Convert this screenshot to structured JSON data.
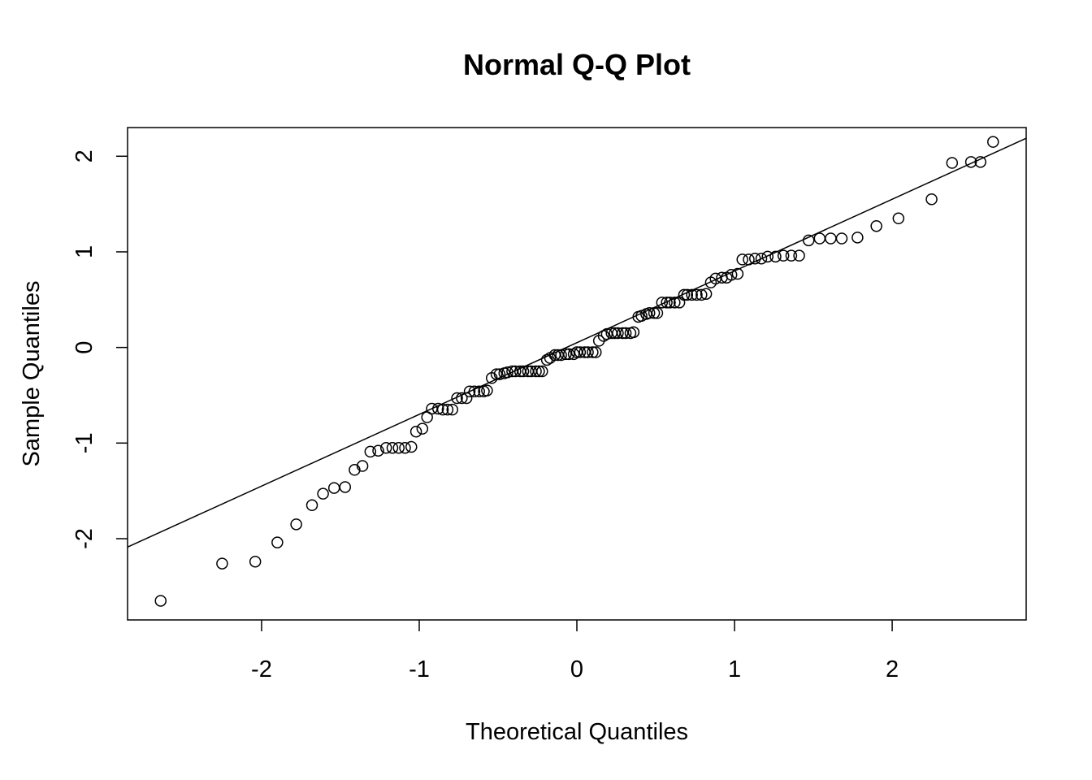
{
  "chart_data": {
    "type": "scatter",
    "title": "Normal Q-Q Plot",
    "xlabel": "Theoretical Quantiles",
    "ylabel": "Sample Quantiles",
    "xlim": [
      -2.85,
      2.85
    ],
    "ylim": [
      -2.85,
      2.3
    ],
    "x_ticks": [
      -2,
      -1,
      0,
      1,
      2
    ],
    "y_ticks": [
      -2,
      -1,
      0,
      1,
      2
    ],
    "x_tick_labels": [
      "-2",
      "-1",
      "0",
      "1",
      "2"
    ],
    "y_tick_labels": [
      "-2",
      "-1",
      "0",
      "1",
      "2"
    ],
    "grid": false,
    "reference_line": {
      "slope": 0.75,
      "intercept": 0.05
    },
    "points": [
      {
        "x": -2.64,
        "y": -2.65
      },
      {
        "x": -2.25,
        "y": -2.26
      },
      {
        "x": -2.04,
        "y": -2.24
      },
      {
        "x": -1.9,
        "y": -2.04
      },
      {
        "x": -1.78,
        "y": -1.85
      },
      {
        "x": -1.68,
        "y": -1.65
      },
      {
        "x": -1.61,
        "y": -1.53
      },
      {
        "x": -1.54,
        "y": -1.47
      },
      {
        "x": -1.47,
        "y": -1.46
      },
      {
        "x": -1.41,
        "y": -1.28
      },
      {
        "x": -1.36,
        "y": -1.24
      },
      {
        "x": -1.31,
        "y": -1.09
      },
      {
        "x": -1.26,
        "y": -1.08
      },
      {
        "x": -1.21,
        "y": -1.05
      },
      {
        "x": -1.17,
        "y": -1.05
      },
      {
        "x": -1.13,
        "y": -1.05
      },
      {
        "x": -1.09,
        "y": -1.05
      },
      {
        "x": -1.05,
        "y": -1.04
      },
      {
        "x": -1.02,
        "y": -0.88
      },
      {
        "x": -0.98,
        "y": -0.85
      },
      {
        "x": -0.95,
        "y": -0.73
      },
      {
        "x": -0.92,
        "y": -0.64
      },
      {
        "x": -0.88,
        "y": -0.64
      },
      {
        "x": -0.85,
        "y": -0.65
      },
      {
        "x": -0.82,
        "y": -0.65
      },
      {
        "x": -0.79,
        "y": -0.65
      },
      {
        "x": -0.76,
        "y": -0.53
      },
      {
        "x": -0.73,
        "y": -0.53
      },
      {
        "x": -0.7,
        "y": -0.53
      },
      {
        "x": -0.68,
        "y": -0.46
      },
      {
        "x": -0.65,
        "y": -0.46
      },
      {
        "x": -0.62,
        "y": -0.46
      },
      {
        "x": -0.59,
        "y": -0.46
      },
      {
        "x": -0.57,
        "y": -0.45
      },
      {
        "x": -0.54,
        "y": -0.32
      },
      {
        "x": -0.51,
        "y": -0.28
      },
      {
        "x": -0.49,
        "y": -0.28
      },
      {
        "x": -0.46,
        "y": -0.27
      },
      {
        "x": -0.44,
        "y": -0.26
      },
      {
        "x": -0.41,
        "y": -0.25
      },
      {
        "x": -0.39,
        "y": -0.25
      },
      {
        "x": -0.36,
        "y": -0.25
      },
      {
        "x": -0.34,
        "y": -0.25
      },
      {
        "x": -0.31,
        "y": -0.25
      },
      {
        "x": -0.29,
        "y": -0.25
      },
      {
        "x": -0.26,
        "y": -0.25
      },
      {
        "x": -0.24,
        "y": -0.25
      },
      {
        "x": -0.22,
        "y": -0.25
      },
      {
        "x": -0.19,
        "y": -0.13
      },
      {
        "x": -0.17,
        "y": -0.11
      },
      {
        "x": -0.14,
        "y": -0.08
      },
      {
        "x": -0.12,
        "y": -0.08
      },
      {
        "x": -0.1,
        "y": -0.08
      },
      {
        "x": -0.07,
        "y": -0.07
      },
      {
        "x": -0.05,
        "y": -0.07
      },
      {
        "x": -0.02,
        "y": -0.07
      },
      {
        "x": 0.0,
        "y": -0.05
      },
      {
        "x": 0.02,
        "y": -0.05
      },
      {
        "x": 0.05,
        "y": -0.05
      },
      {
        "x": 0.07,
        "y": -0.05
      },
      {
        "x": 0.1,
        "y": -0.05
      },
      {
        "x": 0.12,
        "y": -0.05
      },
      {
        "x": 0.14,
        "y": 0.07
      },
      {
        "x": 0.17,
        "y": 0.12
      },
      {
        "x": 0.19,
        "y": 0.14
      },
      {
        "x": 0.22,
        "y": 0.15
      },
      {
        "x": 0.24,
        "y": 0.15
      },
      {
        "x": 0.26,
        "y": 0.15
      },
      {
        "x": 0.29,
        "y": 0.15
      },
      {
        "x": 0.31,
        "y": 0.15
      },
      {
        "x": 0.34,
        "y": 0.15
      },
      {
        "x": 0.36,
        "y": 0.16
      },
      {
        "x": 0.39,
        "y": 0.32
      },
      {
        "x": 0.41,
        "y": 0.33
      },
      {
        "x": 0.44,
        "y": 0.35
      },
      {
        "x": 0.46,
        "y": 0.36
      },
      {
        "x": 0.49,
        "y": 0.36
      },
      {
        "x": 0.51,
        "y": 0.36
      },
      {
        "x": 0.54,
        "y": 0.47
      },
      {
        "x": 0.57,
        "y": 0.47
      },
      {
        "x": 0.59,
        "y": 0.47
      },
      {
        "x": 0.62,
        "y": 0.47
      },
      {
        "x": 0.65,
        "y": 0.47
      },
      {
        "x": 0.68,
        "y": 0.55
      },
      {
        "x": 0.7,
        "y": 0.55
      },
      {
        "x": 0.73,
        "y": 0.55
      },
      {
        "x": 0.76,
        "y": 0.55
      },
      {
        "x": 0.79,
        "y": 0.55
      },
      {
        "x": 0.82,
        "y": 0.56
      },
      {
        "x": 0.85,
        "y": 0.68
      },
      {
        "x": 0.88,
        "y": 0.72
      },
      {
        "x": 0.92,
        "y": 0.73
      },
      {
        "x": 0.95,
        "y": 0.73
      },
      {
        "x": 0.98,
        "y": 0.76
      },
      {
        "x": 1.02,
        "y": 0.77
      },
      {
        "x": 1.05,
        "y": 0.92
      },
      {
        "x": 1.09,
        "y": 0.92
      },
      {
        "x": 1.13,
        "y": 0.93
      },
      {
        "x": 1.17,
        "y": 0.93
      },
      {
        "x": 1.21,
        "y": 0.95
      },
      {
        "x": 1.26,
        "y": 0.95
      },
      {
        "x": 1.31,
        "y": 0.96
      },
      {
        "x": 1.36,
        "y": 0.96
      },
      {
        "x": 1.41,
        "y": 0.96
      },
      {
        "x": 1.47,
        "y": 1.12
      },
      {
        "x": 1.54,
        "y": 1.14
      },
      {
        "x": 1.61,
        "y": 1.14
      },
      {
        "x": 1.68,
        "y": 1.14
      },
      {
        "x": 1.78,
        "y": 1.15
      },
      {
        "x": 1.9,
        "y": 1.27
      },
      {
        "x": 2.04,
        "y": 1.35
      },
      {
        "x": 2.25,
        "y": 1.55
      },
      {
        "x": 2.38,
        "y": 1.93
      },
      {
        "x": 2.5,
        "y": 1.94
      },
      {
        "x": 2.56,
        "y": 1.94
      },
      {
        "x": 2.64,
        "y": 2.15
      }
    ]
  }
}
